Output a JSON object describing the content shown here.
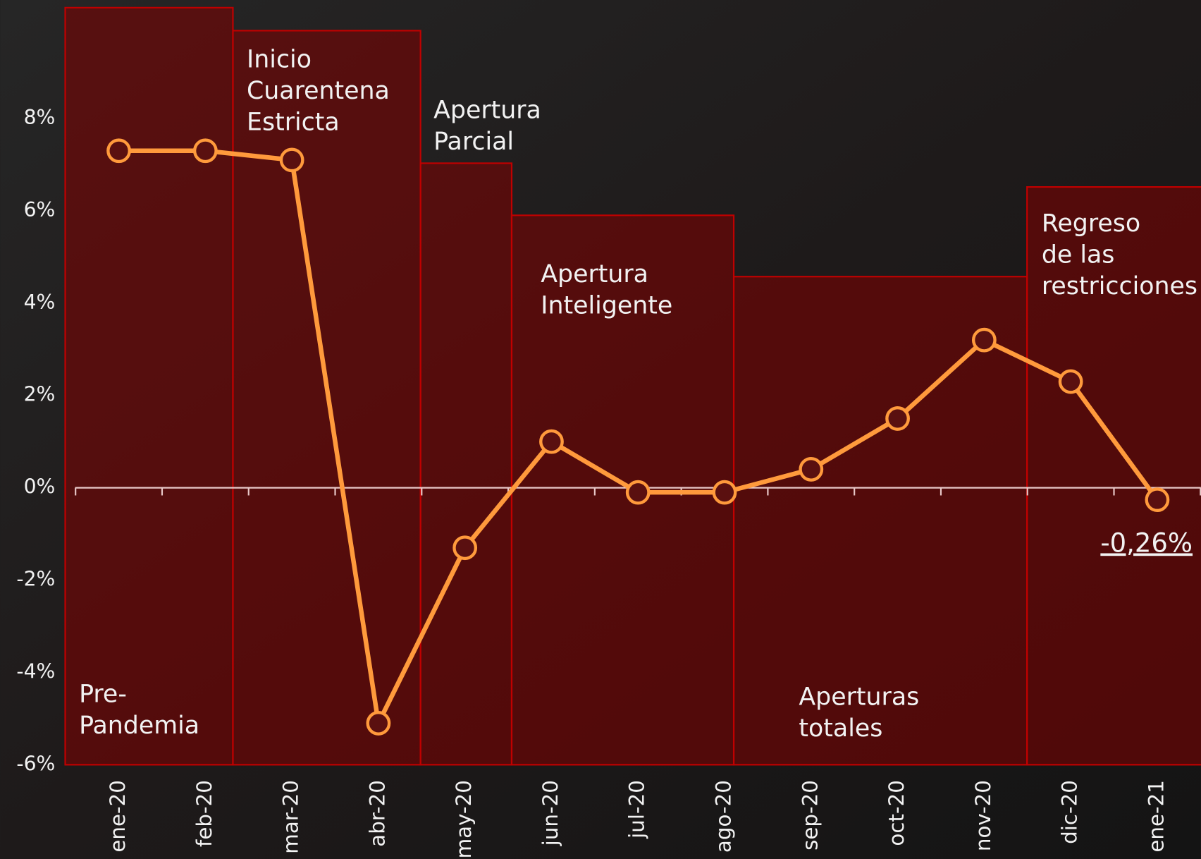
{
  "chart_data": {
    "type": "line",
    "categories": [
      "ene-20",
      "feb-20",
      "mar-20",
      "abr-20",
      "may-20",
      "jun-20",
      "jul-20",
      "ago-20",
      "sep-20",
      "oct-20",
      "nov-20",
      "dic-20",
      "ene-21"
    ],
    "series": [
      {
        "color": "#ff9a3c",
        "values": [
          7.3,
          7.3,
          7.1,
          -5.1,
          -1.3,
          1.0,
          -0.1,
          -0.1,
          0.4,
          1.5,
          3.2,
          2.3,
          -0.26
        ],
        "value_labels": [
          null,
          null,
          null,
          null,
          null,
          null,
          null,
          null,
          null,
          null,
          null,
          null,
          "-0,26%"
        ]
      }
    ],
    "ylim": [
      -6,
      10.4
    ],
    "yticks": [
      {
        "value": -6,
        "label": "-6%"
      },
      {
        "value": -4,
        "label": "-4%"
      },
      {
        "value": -2,
        "label": "-2%"
      },
      {
        "value": 0,
        "label": "0%"
      },
      {
        "value": 2,
        "label": "2%"
      },
      {
        "value": 4,
        "label": "4%"
      },
      {
        "value": 6,
        "label": "6%"
      },
      {
        "value": 8,
        "label": "8%"
      }
    ],
    "phases": [
      {
        "label": [
          "Pre-",
          "Pandemia"
        ]
      },
      {
        "label": [
          "Inicio",
          "Cuarentena",
          "Estricta"
        ]
      },
      {
        "label": [
          "Apertura",
          "Parcial"
        ]
      },
      {
        "label": [
          "Apertura",
          "Inteligente"
        ]
      },
      {
        "label": [
          "Aperturas",
          "totales"
        ]
      },
      {
        "label": [
          "Regreso",
          "de las",
          "restricciones"
        ]
      }
    ]
  }
}
